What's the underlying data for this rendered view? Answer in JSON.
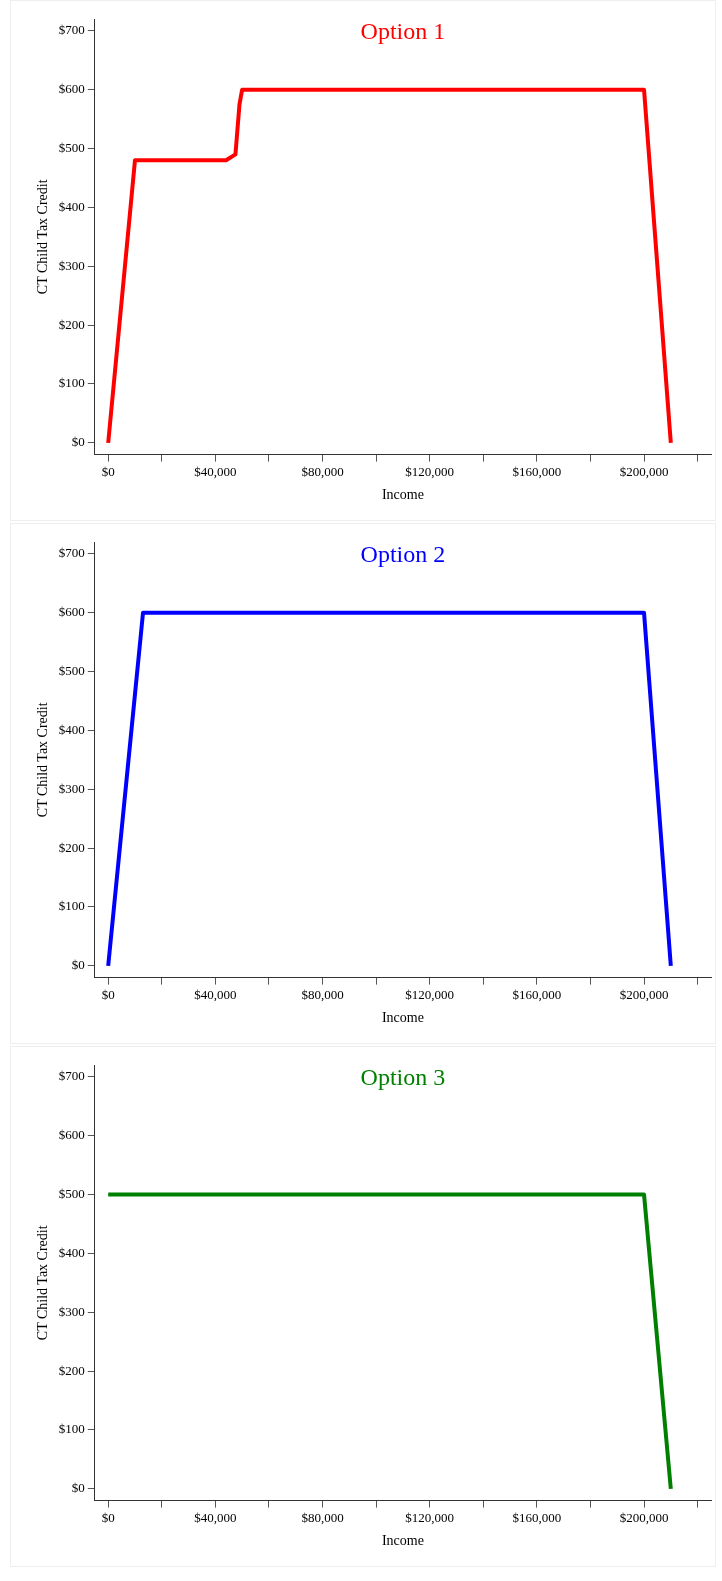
{
  "chart_data": [
    {
      "type": "line",
      "title": "Option 1",
      "xlabel": "Income",
      "ylabel": "CT Child Tax Credit",
      "marker": "none",
      "xlim": [
        -5000,
        225000
      ],
      "xticks": [
        {
          "value": 0,
          "label": "$0"
        },
        {
          "value": 20000,
          "label": null
        },
        {
          "value": 40000,
          "label": "$40,000"
        },
        {
          "value": 60000,
          "label": null
        },
        {
          "value": 80000,
          "label": "$80,000"
        },
        {
          "value": 100000,
          "label": null
        },
        {
          "value": 120000,
          "label": "$120,000"
        },
        {
          "value": 140000,
          "label": null
        },
        {
          "value": 160000,
          "label": "$160,000"
        },
        {
          "value": 180000,
          "label": null
        },
        {
          "value": 200000,
          "label": "$200,000"
        },
        {
          "value": 220000,
          "label": null
        }
      ],
      "ylim": [
        -20,
        720
      ],
      "yticks": [
        {
          "value": 0,
          "label": "$0"
        },
        {
          "value": 100,
          "label": "$100"
        },
        {
          "value": 200,
          "label": "$200"
        },
        {
          "value": 300,
          "label": "$300"
        },
        {
          "value": 400,
          "label": "$400"
        },
        {
          "value": 500,
          "label": "$500"
        },
        {
          "value": 600,
          "label": "$600"
        },
        {
          "value": 700,
          "label": "$700"
        }
      ],
      "series": [
        {
          "color": "#ff0000",
          "x": [
            0,
            10000,
            44000,
            47500,
            49000,
            50000,
            200000,
            210000
          ],
          "values": [
            0,
            480,
            480,
            490,
            575,
            600,
            600,
            0
          ]
        }
      ]
    },
    {
      "type": "line",
      "title": "Option 2",
      "xlabel": "Income",
      "ylabel": "CT Child Tax Credit",
      "marker": "none",
      "xlim": [
        -5000,
        225000
      ],
      "xticks": [
        {
          "value": 0,
          "label": "$0"
        },
        {
          "value": 20000,
          "label": null
        },
        {
          "value": 40000,
          "label": "$40,000"
        },
        {
          "value": 60000,
          "label": null
        },
        {
          "value": 80000,
          "label": "$80,000"
        },
        {
          "value": 100000,
          "label": null
        },
        {
          "value": 120000,
          "label": "$120,000"
        },
        {
          "value": 140000,
          "label": null
        },
        {
          "value": 160000,
          "label": "$160,000"
        },
        {
          "value": 180000,
          "label": null
        },
        {
          "value": 200000,
          "label": "$200,000"
        },
        {
          "value": 220000,
          "label": null
        }
      ],
      "ylim": [
        -20,
        720
      ],
      "yticks": [
        {
          "value": 0,
          "label": "$0"
        },
        {
          "value": 100,
          "label": "$100"
        },
        {
          "value": 200,
          "label": "$200"
        },
        {
          "value": 300,
          "label": "$300"
        },
        {
          "value": 400,
          "label": "$400"
        },
        {
          "value": 500,
          "label": "$500"
        },
        {
          "value": 600,
          "label": "$600"
        },
        {
          "value": 700,
          "label": "$700"
        }
      ],
      "series": [
        {
          "color": "#0000ff",
          "x": [
            0,
            13000,
            200000,
            210000
          ],
          "values": [
            0,
            600,
            600,
            0
          ]
        }
      ]
    },
    {
      "type": "line",
      "title": "Option 3",
      "xlabel": "Income",
      "ylabel": "CT Child Tax Credit",
      "marker": "none",
      "xlim": [
        -5000,
        225000
      ],
      "xticks": [
        {
          "value": 0,
          "label": "$0"
        },
        {
          "value": 20000,
          "label": null
        },
        {
          "value": 40000,
          "label": "$40,000"
        },
        {
          "value": 60000,
          "label": null
        },
        {
          "value": 80000,
          "label": "$80,000"
        },
        {
          "value": 100000,
          "label": null
        },
        {
          "value": 120000,
          "label": "$120,000"
        },
        {
          "value": 140000,
          "label": null
        },
        {
          "value": 160000,
          "label": "$160,000"
        },
        {
          "value": 180000,
          "label": null
        },
        {
          "value": 200000,
          "label": "$200,000"
        },
        {
          "value": 220000,
          "label": null
        }
      ],
      "ylim": [
        -20,
        720
      ],
      "yticks": [
        {
          "value": 0,
          "label": "$0"
        },
        {
          "value": 100,
          "label": "$100"
        },
        {
          "value": 200,
          "label": "$200"
        },
        {
          "value": 300,
          "label": "$300"
        },
        {
          "value": 400,
          "label": "$400"
        },
        {
          "value": 500,
          "label": "$500"
        },
        {
          "value": 600,
          "label": "$600"
        },
        {
          "value": 700,
          "label": "$700"
        }
      ],
      "series": [
        {
          "color": "#008000",
          "x": [
            0,
            200000,
            210000
          ],
          "values": [
            500,
            500,
            0
          ]
        }
      ]
    }
  ]
}
